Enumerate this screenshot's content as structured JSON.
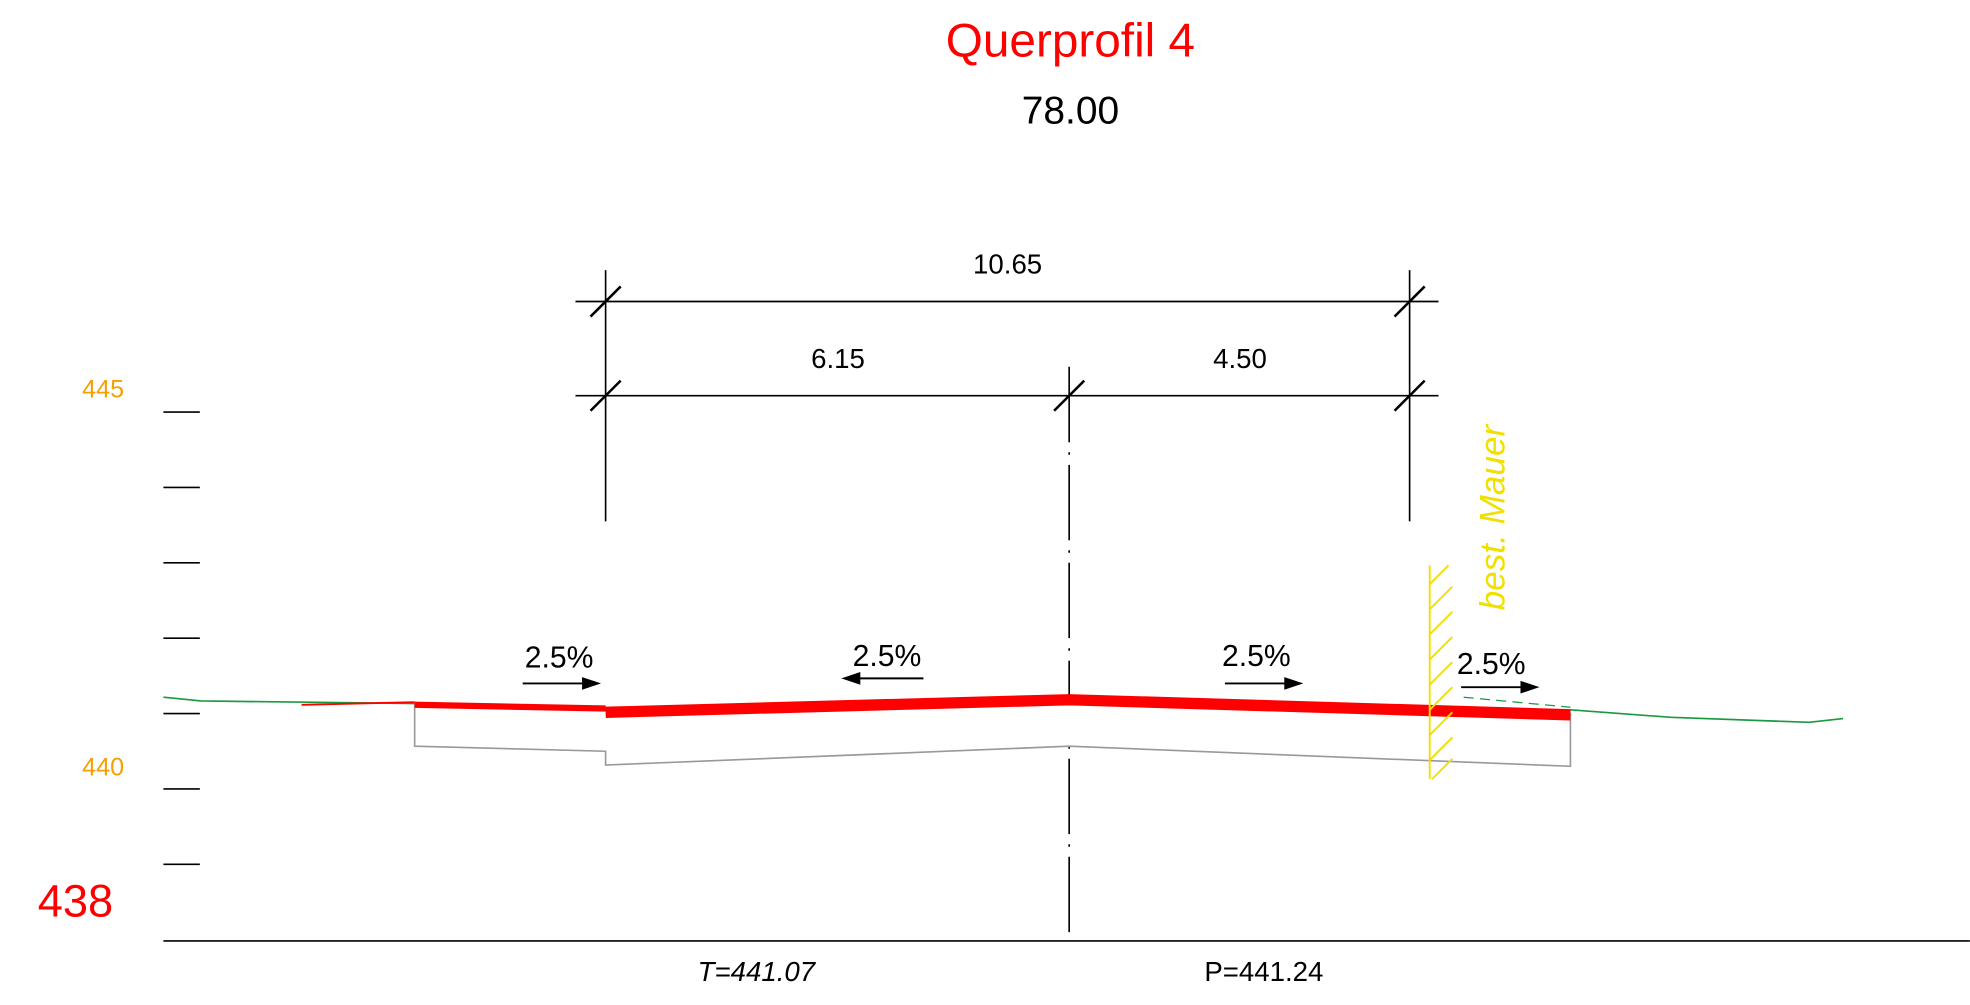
{
  "title": "Querprofil 4",
  "station": "78.00",
  "dimensions": {
    "total": "10.65",
    "left": "6.15",
    "right": "4.50"
  },
  "slopes": [
    "2.5%",
    "2.5%",
    "2.5%",
    "2.5%"
  ],
  "wall_label": "best. Mauer",
  "elevation_labels": [
    "445",
    "440",
    "438"
  ],
  "bottom_labels": [
    "T=441.07",
    "P=441.24"
  ]
}
